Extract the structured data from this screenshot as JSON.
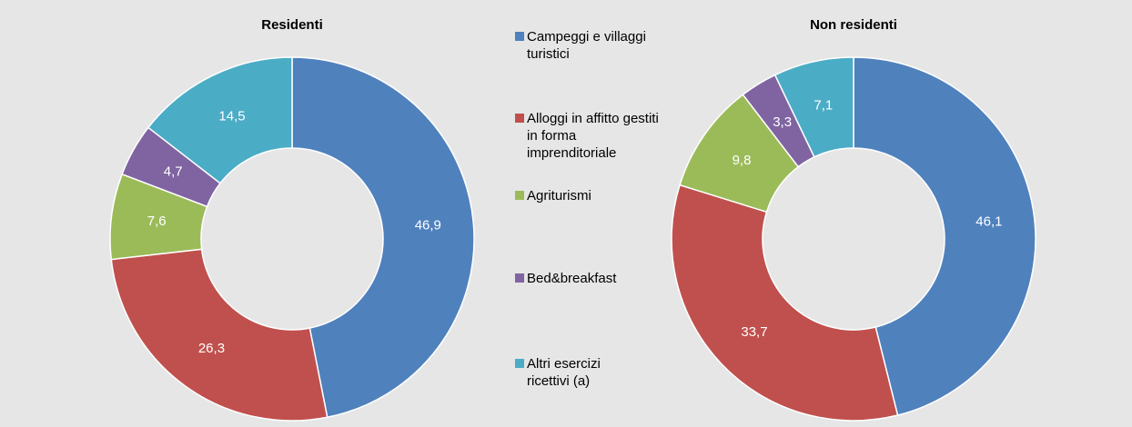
{
  "chart_data": [
    {
      "type": "pie",
      "title": "Residenti",
      "categories": [
        "Campeggi e villaggi turistici",
        "Alloggi in affitto gestiti in forma imprenditoriale",
        "Agriturismi",
        "Bed&breakfast",
        "Altri esercizi ricettivi (a)"
      ],
      "values": [
        46.9,
        26.3,
        7.6,
        4.7,
        14.5
      ],
      "value_labels": [
        "46,9",
        "26,3",
        "7,6",
        "4,7",
        "14,5"
      ],
      "colors": [
        "#4f81bd",
        "#c0504d",
        "#9bbb59",
        "#8064a2",
        "#4bacc6"
      ]
    },
    {
      "type": "pie",
      "title": "Non residenti",
      "categories": [
        "Campeggi e villaggi turistici",
        "Alloggi in affitto gestiti in forma imprenditoriale",
        "Agriturismi",
        "Bed&breakfast",
        "Altri esercizi ricettivi (a)"
      ],
      "values": [
        46.1,
        33.7,
        9.8,
        3.3,
        7.1
      ],
      "value_labels": [
        "46,1",
        "33,7",
        "9,8",
        "3,3",
        "7,1"
      ],
      "colors": [
        "#4f81bd",
        "#c0504d",
        "#9bbb59",
        "#8064a2",
        "#4bacc6"
      ]
    }
  ]
}
